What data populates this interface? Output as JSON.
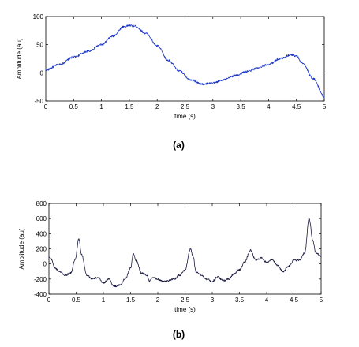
{
  "chart_data": [
    {
      "type": "line",
      "panel_label": "(a)",
      "xlabel": "time (s)",
      "ylabel": "Amplitude (au)",
      "xlim": [
        0,
        5
      ],
      "ylim": [
        -50,
        100
      ],
      "x_ticks": [
        "0",
        "0.5",
        "1",
        "1.5",
        "2",
        "2.5",
        "3",
        "3.5",
        "4",
        "4.5",
        "5"
      ],
      "y_ticks": [
        "-50",
        "0",
        "50",
        "100"
      ],
      "grid": false,
      "line_color": "#1a35c8",
      "x": [
        0,
        0.25,
        0.5,
        0.75,
        1.0,
        1.2,
        1.4,
        1.5,
        1.6,
        1.8,
        2.0,
        2.2,
        2.4,
        2.6,
        2.8,
        3.0,
        3.2,
        3.4,
        3.6,
        3.8,
        4.0,
        4.2,
        4.4,
        4.5,
        4.6,
        4.8,
        5.0
      ],
      "y": [
        5,
        15,
        28,
        38,
        50,
        65,
        82,
        84,
        83,
        70,
        48,
        22,
        3,
        -12,
        -20,
        -18,
        -12,
        -5,
        2,
        8,
        15,
        25,
        32,
        30,
        18,
        -10,
        -42
      ]
    },
    {
      "type": "line",
      "panel_label": "(b)",
      "xlabel": "time (s)",
      "ylabel": "Amplitude (au)",
      "xlim": [
        0,
        5
      ],
      "ylim": [
        -400,
        800
      ],
      "x_ticks": [
        "0",
        "0.5",
        "1",
        "1.5",
        "2",
        "2.5",
        "3",
        "3.5",
        "4",
        "4.5",
        "5"
      ],
      "y_ticks": [
        "-400",
        "-200",
        "0",
        "200",
        "400",
        "600",
        "800"
      ],
      "grid": false,
      "line_color": "#1a1a40",
      "x": [
        0,
        0.05,
        0.1,
        0.2,
        0.3,
        0.4,
        0.48,
        0.55,
        0.6,
        0.7,
        0.8,
        0.9,
        1.0,
        1.1,
        1.2,
        1.3,
        1.4,
        1.5,
        1.55,
        1.6,
        1.7,
        1.8,
        1.85,
        1.9,
        2.0,
        2.1,
        2.2,
        2.3,
        2.4,
        2.5,
        2.6,
        2.65,
        2.7,
        2.8,
        2.9,
        3.0,
        3.1,
        3.2,
        3.3,
        3.4,
        3.5,
        3.6,
        3.7,
        3.8,
        3.9,
        4.0,
        4.1,
        4.2,
        4.3,
        4.4,
        4.5,
        4.6,
        4.7,
        4.78,
        4.85,
        4.9,
        5.0
      ],
      "y": [
        100,
        60,
        -50,
        -100,
        -150,
        -120,
        50,
        330,
        120,
        -150,
        -200,
        -180,
        -250,
        -200,
        -300,
        -280,
        -200,
        -50,
        130,
        50,
        -120,
        -150,
        -230,
        -180,
        -200,
        -230,
        -220,
        -200,
        -150,
        -80,
        200,
        100,
        -100,
        -150,
        -200,
        -230,
        -170,
        -220,
        -200,
        -130,
        -80,
        30,
        180,
        50,
        80,
        20,
        60,
        -20,
        -100,
        -30,
        50,
        50,
        150,
        600,
        300,
        150,
        100
      ]
    }
  ]
}
